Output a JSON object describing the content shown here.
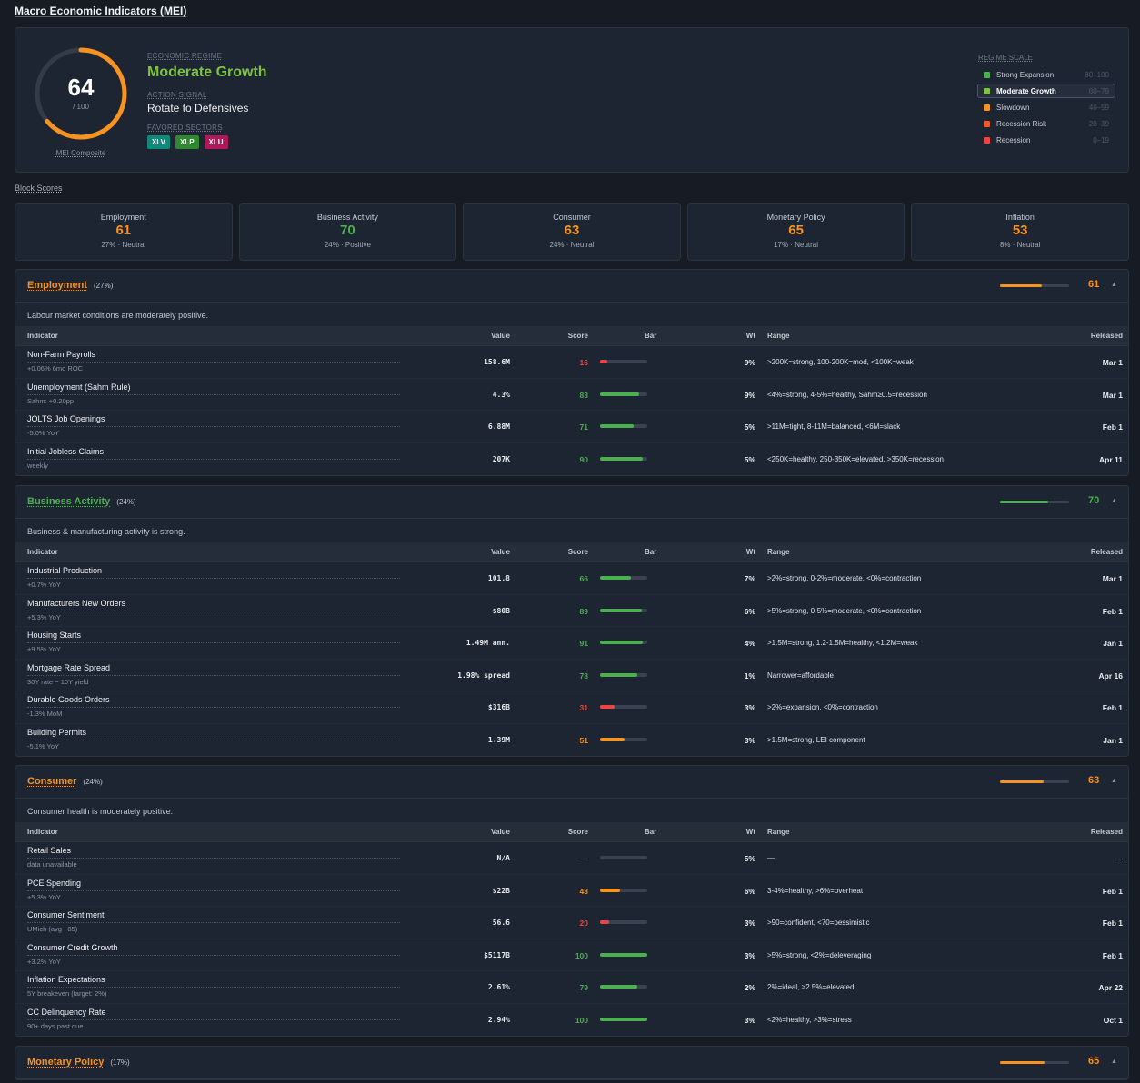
{
  "title": "Macro Economic Indicators (MEI)",
  "composite": {
    "score": 64,
    "max": "/ 100",
    "caption": "MEI Composite",
    "fraction": 0.64,
    "color": "#f7931e"
  },
  "regime": {
    "label": "ECONOMIC REGIME",
    "value": "Moderate Growth",
    "color": "#7ec242"
  },
  "action": {
    "label": "ACTION SIGNAL",
    "value": "Rotate to Defensives"
  },
  "sectors": {
    "label": "FAVORED SECTORS",
    "items": [
      {
        "name": "XLV",
        "color": "#0f8a7a"
      },
      {
        "name": "XLP",
        "color": "#2f8a2f"
      },
      {
        "name": "XLU",
        "color": "#b0185a"
      }
    ]
  },
  "scale": {
    "title": "REGIME SCALE",
    "items": [
      {
        "name": "Strong Expansion",
        "range": "80–100",
        "color": "#4cb050",
        "active": false
      },
      {
        "name": "Moderate Growth",
        "range": "60–79",
        "color": "#7ec242",
        "active": true
      },
      {
        "name": "Slowdown",
        "range": "40–59",
        "color": "#f7931e",
        "active": false
      },
      {
        "name": "Recession Risk",
        "range": "20–39",
        "color": "#f05a28",
        "active": false
      },
      {
        "name": "Recession",
        "range": "0–19",
        "color": "#ef4444",
        "active": false
      }
    ]
  },
  "block_scores_label": "Block Scores",
  "blocks": [
    {
      "name": "Employment",
      "score": "61",
      "meta": "27% · Neutral",
      "color": "#f7931e"
    },
    {
      "name": "Business Activity",
      "score": "70",
      "meta": "24% · Positive",
      "color": "#4cb050"
    },
    {
      "name": "Consumer",
      "score": "63",
      "meta": "24% · Neutral",
      "color": "#f7931e"
    },
    {
      "name": "Monetary Policy",
      "score": "65",
      "meta": "17% · Neutral",
      "color": "#f7931e"
    },
    {
      "name": "Inflation",
      "score": "53",
      "meta": "8% · Neutral",
      "color": "#f7931e"
    }
  ],
  "table_headers": {
    "indicator": "Indicator",
    "value": "Value",
    "score": "Score",
    "bar": "Bar",
    "wt": "Wt",
    "range": "Range",
    "released": "Released"
  },
  "sections": [
    {
      "name": "Employment",
      "weight": "(27%)",
      "score": "61",
      "fraction": 0.61,
      "color": "#f7931e",
      "description": "Labour market conditions are moderately positive.",
      "rows": [
        {
          "name": "Non-Farm Payrolls",
          "sub": "+0.06% 6mo ROC",
          "value": "158.6M",
          "score": "16",
          "level": 0.16,
          "wt": "9%",
          "range": ">200K=strong, 100-200K=mod, <100K=weak",
          "released": "Mar 1"
        },
        {
          "name": "Unemployment (Sahm Rule)",
          "sub": "Sahm: +0.20pp",
          "value": "4.3%",
          "score": "83",
          "level": 0.83,
          "wt": "9%",
          "range": "<4%=strong, 4-5%=healthy, Sahm≥0.5=recession",
          "released": "Mar 1"
        },
        {
          "name": "JOLTS Job Openings",
          "sub": "-5.0% YoY",
          "value": "6.88M",
          "score": "71",
          "level": 0.71,
          "wt": "5%",
          "range": ">11M=tight, 8-11M=balanced, <6M=slack",
          "released": "Feb 1"
        },
        {
          "name": "Initial Jobless Claims",
          "sub": "weekly",
          "value": "207K",
          "score": "90",
          "level": 0.9,
          "wt": "5%",
          "range": "<250K=healthy, 250-350K=elevated, >350K=recession",
          "released": "Apr 11"
        }
      ]
    },
    {
      "name": "Business Activity",
      "weight": "(24%)",
      "score": "70",
      "fraction": 0.7,
      "color": "#4cb050",
      "description": "Business & manufacturing activity is strong.",
      "rows": [
        {
          "name": "Industrial Production",
          "sub": "+0.7% YoY",
          "value": "101.8",
          "score": "66",
          "level": 0.66,
          "wt": "7%",
          "range": ">2%=strong, 0-2%=moderate, <0%=contraction",
          "released": "Mar 1"
        },
        {
          "name": "Manufacturers New Orders",
          "sub": "+5.3% YoY",
          "value": "$80B",
          "score": "89",
          "level": 0.89,
          "wt": "6%",
          "range": ">5%=strong, 0-5%=moderate, <0%=contraction",
          "released": "Feb 1"
        },
        {
          "name": "Housing Starts",
          "sub": "+9.5% YoY",
          "value": "1.49M ann.",
          "score": "91",
          "level": 0.91,
          "wt": "4%",
          "range": ">1.5M=strong, 1.2-1.5M=healthy, <1.2M=weak",
          "released": "Jan 1"
        },
        {
          "name": "Mortgage Rate Spread",
          "sub": "30Y rate − 10Y yield",
          "value": "1.98% spread",
          "score": "78",
          "level": 0.78,
          "wt": "1%",
          "range": "Narrower=affordable",
          "released": "Apr 16"
        },
        {
          "name": "Durable Goods Orders",
          "sub": "-1.3% MoM",
          "value": "$316B",
          "score": "31",
          "level": 0.31,
          "wt": "3%",
          "range": ">2%=expansion, <0%=contraction",
          "released": "Feb 1"
        },
        {
          "name": "Building Permits",
          "sub": "-5.1% YoY",
          "value": "1.39M",
          "score": "51",
          "level": 0.51,
          "wt": "3%",
          "range": ">1.5M=strong, LEI component",
          "released": "Jan 1"
        }
      ]
    },
    {
      "name": "Consumer",
      "weight": "(24%)",
      "score": "63",
      "fraction": 0.63,
      "color": "#f7931e",
      "description": "Consumer health is moderately positive.",
      "rows": [
        {
          "name": "Retail Sales",
          "sub": "data unavailable",
          "value": "N/A",
          "score": "—",
          "level": 0,
          "wt": "5%",
          "range": "—",
          "released": "—"
        },
        {
          "name": "PCE Spending",
          "sub": "+5.3% YoY",
          "value": "$22B",
          "score": "43",
          "level": 0.43,
          "wt": "6%",
          "range": "3-4%=healthy, >6%=overheat",
          "released": "Feb 1"
        },
        {
          "name": "Consumer Sentiment",
          "sub": "UMich (avg ~85)",
          "value": "56.6",
          "score": "20",
          "level": 0.2,
          "wt": "3%",
          "range": ">90=confident, <70=pessimistic",
          "released": "Feb 1"
        },
        {
          "name": "Consumer Credit Growth",
          "sub": "+3.2% YoY",
          "value": "$5117B",
          "score": "100",
          "level": 1.0,
          "wt": "3%",
          "range": ">5%=strong, <2%=deleveraging",
          "released": "Feb 1"
        },
        {
          "name": "Inflation Expectations",
          "sub": "5Y breakeven (target: 2%)",
          "value": "2.61%",
          "score": "79",
          "level": 0.79,
          "wt": "2%",
          "range": "2%=ideal, >2.5%=elevated",
          "released": "Apr 22"
        },
        {
          "name": "CC Delinquency Rate",
          "sub": "90+ days past due",
          "value": "2.94%",
          "score": "100",
          "level": 1.0,
          "wt": "3%",
          "range": "<2%=healthy, >3%=stress",
          "released": "Oct 1"
        }
      ]
    },
    {
      "name": "Monetary Policy",
      "weight": "(17%)",
      "score": "65",
      "fraction": 0.65,
      "color": "#f7931e",
      "description": "",
      "rows": []
    }
  ]
}
